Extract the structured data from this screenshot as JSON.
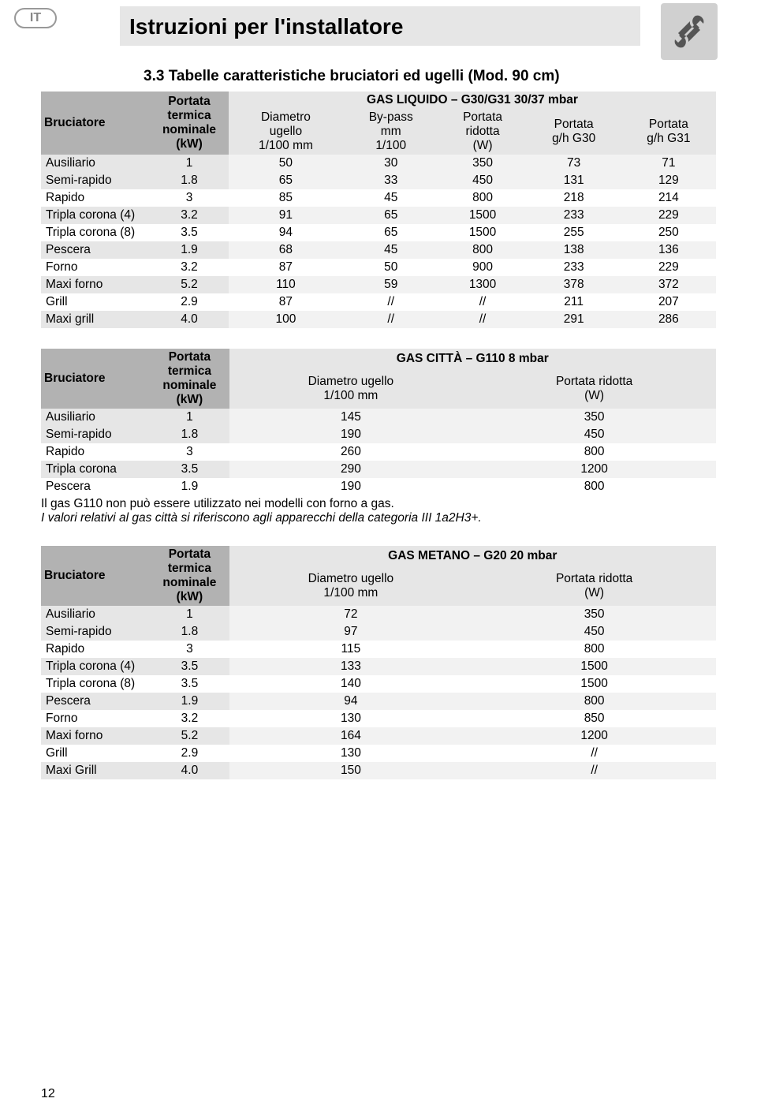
{
  "lang_badge": "IT",
  "page_title": "Istruzioni per l'installatore",
  "section_title": "3.3   Tabelle caratteristiche bruciatori ed ugelli (Mod. 90 cm)",
  "page_number": "12",
  "t1": {
    "hdr_bruc": "Bruciatore",
    "hdr_port": "Portata termica nominale (kW)",
    "hdr_gas": "GAS LIQUIDO – G30/G31 30/37 mbar",
    "cols": [
      "Diametro ugello 1/100 mm",
      "By-pass mm 1/100",
      "Portata ridotta (W)",
      "Portata g/h G30",
      "Portata g/h G31"
    ],
    "rows": [
      {
        "n": "Ausiliario",
        "kw": "1",
        "v": [
          "50",
          "30",
          "350",
          "73",
          "71"
        ],
        "shade": true
      },
      {
        "n": "Semi-rapido",
        "kw": "1.8",
        "v": [
          "65",
          "33",
          "450",
          "131",
          "129"
        ],
        "shade": true
      },
      {
        "n": "Rapido",
        "kw": "3",
        "v": [
          "85",
          "45",
          "800",
          "218",
          "214"
        ],
        "shade": false
      },
      {
        "n": "Tripla corona (4)",
        "kw": "3.2",
        "v": [
          "91",
          "65",
          "1500",
          "233",
          "229"
        ],
        "shade": true
      },
      {
        "n": "Tripla corona (8)",
        "kw": "3.5",
        "v": [
          "94",
          "65",
          "1500",
          "255",
          "250"
        ],
        "shade": false
      },
      {
        "n": "Pescera",
        "kw": "1.9",
        "v": [
          "68",
          "45",
          "800",
          "138",
          "136"
        ],
        "shade": true
      },
      {
        "n": "Forno",
        "kw": "3.2",
        "v": [
          "87",
          "50",
          "900",
          "233",
          "229"
        ],
        "shade": false
      },
      {
        "n": "Maxi forno",
        "kw": "5.2",
        "v": [
          "110",
          "59",
          "1300",
          "378",
          "372"
        ],
        "shade": true
      },
      {
        "n": "Grill",
        "kw": "2.9",
        "v": [
          "87",
          "//",
          "//",
          "211",
          "207"
        ],
        "shade": false
      },
      {
        "n": "Maxi grill",
        "kw": "4.0",
        "v": [
          "100",
          "//",
          "//",
          "291",
          "286"
        ],
        "shade": true
      }
    ]
  },
  "t2": {
    "hdr_bruc": "Bruciatore",
    "hdr_port": "Portata termica nominale (kW)",
    "hdr_gas": "GAS CITTÀ – G110 8 mbar",
    "cols": [
      "Diametro ugello 1/100 mm",
      "Portata ridotta (W)"
    ],
    "rows": [
      {
        "n": "Ausiliario",
        "kw": "1",
        "v": [
          "145",
          "350"
        ],
        "shade": true
      },
      {
        "n": "Semi-rapido",
        "kw": "1.8",
        "v": [
          "190",
          "450"
        ],
        "shade": true
      },
      {
        "n": "Rapido",
        "kw": "3",
        "v": [
          "260",
          "800"
        ],
        "shade": false
      },
      {
        "n": "Tripla corona",
        "kw": "3.5",
        "v": [
          "290",
          "1200"
        ],
        "shade": true
      },
      {
        "n": "Pescera",
        "kw": "1.9",
        "v": [
          "190",
          "800"
        ],
        "shade": false
      }
    ],
    "note1": "Il gas G110 non può essere utilizzato nei modelli con forno a gas.",
    "note2": "I valori relativi al gas città si riferiscono agli apparecchi della categoria III 1a2H3+."
  },
  "t3": {
    "hdr_bruc": "Bruciatore",
    "hdr_port": "Portata termica nominale (kW)",
    "hdr_gas": "GAS METANO – G20 20 mbar",
    "cols": [
      "Diametro ugello 1/100 mm",
      "Portata ridotta (W)"
    ],
    "rows": [
      {
        "n": "Ausiliario",
        "kw": "1",
        "v": [
          "72",
          "350"
        ],
        "shade": true
      },
      {
        "n": "Semi-rapido",
        "kw": "1.8",
        "v": [
          "97",
          "450"
        ],
        "shade": true
      },
      {
        "n": "Rapido",
        "kw": "3",
        "v": [
          "115",
          "800"
        ],
        "shade": false
      },
      {
        "n": "Tripla corona (4)",
        "kw": "3.5",
        "v": [
          "133",
          "1500"
        ],
        "shade": true
      },
      {
        "n": "Tripla corona (8)",
        "kw": "3.5",
        "v": [
          "140",
          "1500"
        ],
        "shade": false
      },
      {
        "n": "Pescera",
        "kw": "1.9",
        "v": [
          "94",
          "800"
        ],
        "shade": true
      },
      {
        "n": "Forno",
        "kw": "3.2",
        "v": [
          "130",
          "850"
        ],
        "shade": false
      },
      {
        "n": "Maxi forno",
        "kw": "5.2",
        "v": [
          "164",
          "1200"
        ],
        "shade": true
      },
      {
        "n": "Grill",
        "kw": "2.9",
        "v": [
          "130",
          "//"
        ],
        "shade": false
      },
      {
        "n": "Maxi Grill",
        "kw": "4.0",
        "v": [
          "150",
          "//"
        ],
        "shade": true
      }
    ]
  }
}
